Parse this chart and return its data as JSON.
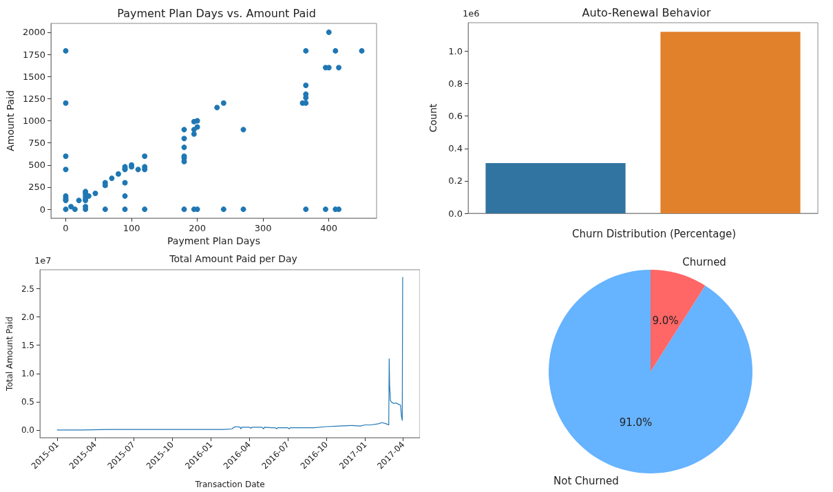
{
  "chart_data": [
    {
      "type": "scatter",
      "title": "Payment Plan Days vs. Amount Paid",
      "xlabel": "Payment Plan Days",
      "ylabel": "Amount Paid",
      "marker": "circle",
      "grid": false,
      "legend": false,
      "x": [
        0,
        0,
        0,
        0,
        0,
        0,
        0,
        0,
        0,
        8,
        14,
        20,
        30,
        30,
        30,
        30,
        30,
        30,
        30,
        35,
        45,
        60,
        60,
        60,
        70,
        80,
        90,
        90,
        90,
        90,
        90,
        90,
        100,
        100,
        110,
        120,
        120,
        120,
        120,
        180,
        180,
        180,
        180,
        180,
        180,
        180,
        195,
        195,
        195,
        200,
        200,
        195,
        200,
        230,
        240,
        240,
        270,
        270,
        360,
        365,
        365,
        365,
        365,
        365,
        365,
        395,
        400,
        400,
        410,
        415,
        395,
        410,
        415,
        450
      ],
      "series": [
        {
          "color": "#1f77b4",
          "values": [
            1790,
            1200,
            600,
            450,
            150,
            130,
            110,
            100,
            0,
            30,
            0,
            100,
            200,
            180,
            150,
            120,
            100,
            30,
            0,
            150,
            180,
            300,
            270,
            0,
            350,
            400,
            480,
            460,
            450,
            300,
            150,
            0,
            500,
            480,
            450,
            600,
            480,
            450,
            0,
            900,
            800,
            700,
            600,
            580,
            540,
            0,
            990,
            900,
            850,
            1000,
            930,
            0,
            0,
            1150,
            1200,
            0,
            900,
            0,
            1200,
            1790,
            1400,
            1300,
            1260,
            1200,
            0,
            1600,
            2000,
            1600,
            1790,
            1600,
            0,
            0,
            0,
            1790
          ]
        }
      ],
      "xlim": [
        -22.5,
        472.5
      ],
      "xticks": [
        0,
        100,
        200,
        300,
        400
      ],
      "ylim": [
        -100,
        2100
      ],
      "yticks": [
        0,
        250,
        500,
        750,
        1000,
        1250,
        1500,
        1750,
        2000
      ]
    },
    {
      "type": "bar",
      "title": "Auto-Renewal Behavior",
      "ylabel": "Count",
      "annotations": [
        "1e6"
      ],
      "grid": false,
      "legend": false,
      "categories": [
        null,
        null
      ],
      "values": [
        0.31,
        1.12
      ],
      "colors": [
        "#3274a1",
        "#e1812c"
      ],
      "ylim": [
        0,
        1.176
      ],
      "yticks": [
        {
          "value": 0,
          "label": "0.0"
        },
        0.2,
        0.4,
        0.6,
        0.8,
        {
          "value": 1,
          "label": "1.0"
        }
      ]
    },
    {
      "type": "line",
      "title": "Total Amount Paid per Day",
      "xlabel": "Transaction Date",
      "ylabel": "Total Amount Paid",
      "annotations": [
        "1e7"
      ],
      "grid": false,
      "legend": false,
      "marker": "none",
      "line_style": "solid",
      "x": [
        "2015-01-01",
        "2015-03-01",
        "2015-05-01",
        "2015-07-01",
        "2015-09-01",
        "2015-11-01",
        "2015-12-01",
        "2016-01-01",
        "2016-02-01",
        "2016-02-20",
        "2016-02-25",
        "2016-03-01",
        "2016-03-10",
        "2016-03-12",
        "2016-03-14",
        "2016-03-25",
        "2016-04-01",
        "2016-04-05",
        "2016-04-07",
        "2016-04-20",
        "2016-05-01",
        "2016-05-05",
        "2016-05-07",
        "2016-05-25",
        "2016-06-01",
        "2016-06-05",
        "2016-06-07",
        "2016-06-25",
        "2016-07-01",
        "2016-07-05",
        "2016-07-07",
        "2016-08-01",
        "2016-09-01",
        "2016-10-01",
        "2016-11-01",
        "2016-12-01",
        "2016-12-20",
        "2017-01-01",
        "2017-01-15",
        "2017-02-01",
        "2017-02-10",
        "2017-02-20",
        "2017-02-26",
        "2017-02-27",
        "2017-02-28",
        "2017-03-02",
        "2017-03-05",
        "2017-03-10",
        "2017-03-15",
        "2017-03-20",
        "2017-03-26",
        "2017-03-28",
        "2017-03-30",
        "2017-03-31"
      ],
      "series": [
        {
          "color": "#1f77b4",
          "values": [
            0,
            0,
            0.01,
            0.01,
            0.01,
            0.01,
            0.01,
            0.01,
            0.01,
            0.02,
            0.05,
            0.06,
            0.05,
            0.02,
            0.05,
            0.05,
            0.05,
            0.03,
            0.05,
            0.05,
            0.05,
            0.02,
            0.05,
            0.04,
            0.04,
            0.02,
            0.04,
            0.04,
            0.04,
            0.02,
            0.04,
            0.04,
            0.04,
            0.06,
            0.07,
            0.08,
            0.07,
            0.09,
            0.09,
            0.11,
            0.13,
            0.11,
            0.09,
            1.26,
            0.8,
            0.52,
            0.49,
            0.47,
            0.48,
            0.46,
            0.44,
            0.25,
            0.17,
            2.7
          ]
        }
      ],
      "xlim": [
        "2014-11-21",
        "2017-05-11"
      ],
      "xticks": [
        "2015-01",
        "2015-04",
        "2015-07",
        "2015-10",
        "2016-01",
        "2016-04",
        "2016-07",
        "2016-10",
        "2017-01",
        "2017-04"
      ],
      "ylim": [
        -0.135,
        2.835
      ],
      "yticks": [
        {
          "value": 0,
          "label": "0.0"
        },
        0.5,
        {
          "value": 1,
          "label": "1.0"
        },
        1.5,
        {
          "value": 2,
          "label": "2.0"
        },
        2.5
      ]
    },
    {
      "type": "pie",
      "title": "Churn Distribution (Percentage)",
      "legend": false,
      "categories": [
        "Not Churned",
        "Churned"
      ],
      "values": [
        91,
        9
      ],
      "colors": [
        "#66b3ff",
        "#ff6666"
      ],
      "value_labels": [
        "91.0%",
        "9.0%"
      ]
    }
  ]
}
